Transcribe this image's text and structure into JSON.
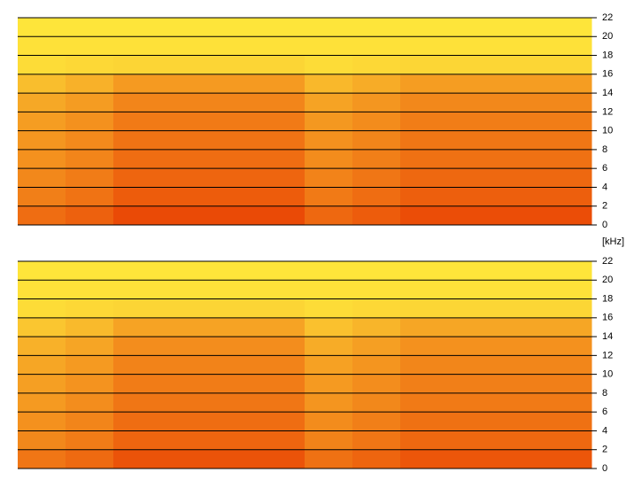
{
  "chart_data": [
    {
      "type": "spectrogram",
      "colormap": [
        "#ffea3c",
        "#e83800"
      ],
      "grid": true,
      "ylim": [
        0,
        22
      ],
      "yticks": [
        0,
        2,
        4,
        6,
        8,
        10,
        12,
        14,
        16,
        18,
        20,
        22
      ],
      "values": [
        [
          70,
          77,
          90,
          90,
          90,
          90,
          73,
          80,
          88,
          88,
          88,
          88
        ],
        [
          60,
          67,
          80,
          80,
          80,
          80,
          63,
          70,
          78,
          78,
          78,
          78
        ],
        [
          55,
          62,
          75,
          75,
          75,
          75,
          58,
          65,
          73,
          73,
          73,
          73
        ],
        [
          50,
          57,
          70,
          70,
          70,
          70,
          53,
          60,
          68,
          68,
          68,
          68
        ],
        [
          47,
          54,
          67,
          67,
          67,
          67,
          50,
          57,
          65,
          65,
          65,
          65
        ],
        [
          43,
          50,
          63,
          63,
          63,
          63,
          46,
          53,
          61,
          61,
          61,
          61
        ],
        [
          37,
          44,
          57,
          57,
          57,
          57,
          40,
          47,
          55,
          55,
          55,
          55
        ],
        [
          25,
          32,
          45,
          45,
          45,
          45,
          28,
          35,
          43,
          43,
          43,
          43
        ],
        [
          8,
          10,
          12,
          12,
          12,
          12,
          8,
          10,
          11,
          11,
          11,
          11
        ],
        [
          5,
          5,
          5,
          5,
          5,
          5,
          5,
          5,
          5,
          5,
          5,
          5
        ],
        [
          3,
          3,
          3,
          3,
          3,
          3,
          3,
          3,
          3,
          3,
          3,
          3
        ]
      ]
    },
    {
      "type": "spectrogram",
      "colormap": [
        "#ffea3c",
        "#e83800"
      ],
      "grid": true,
      "ylabel": "[kHz]",
      "ylim": [
        0,
        22
      ],
      "yticks": [
        0,
        2,
        4,
        6,
        8,
        10,
        12,
        14,
        16,
        18,
        20,
        22
      ],
      "values": [
        [
          65,
          72,
          85,
          85,
          85,
          85,
          68,
          75,
          83,
          83,
          83,
          83
        ],
        [
          55,
          62,
          75,
          75,
          75,
          75,
          58,
          65,
          73,
          73,
          73,
          73
        ],
        [
          50,
          57,
          70,
          70,
          70,
          70,
          53,
          60,
          68,
          68,
          68,
          68
        ],
        [
          45,
          52,
          65,
          65,
          65,
          65,
          48,
          55,
          63,
          63,
          63,
          63
        ],
        [
          42,
          49,
          62,
          62,
          62,
          62,
          45,
          52,
          60,
          60,
          60,
          60
        ],
        [
          38,
          45,
          58,
          58,
          58,
          58,
          41,
          48,
          56,
          56,
          56,
          56
        ],
        [
          32,
          39,
          52,
          52,
          52,
          52,
          35,
          42,
          50,
          50,
          50,
          50
        ],
        [
          20,
          27,
          40,
          40,
          40,
          40,
          23,
          30,
          38,
          38,
          38,
          38
        ],
        [
          8,
          10,
          12,
          12,
          12,
          12,
          8,
          10,
          11,
          11,
          11,
          11
        ],
        [
          5,
          5,
          5,
          5,
          5,
          5,
          5,
          5,
          5,
          5,
          5,
          5
        ],
        [
          3,
          3,
          3,
          3,
          3,
          3,
          3,
          3,
          3,
          3,
          3,
          3
        ]
      ]
    }
  ]
}
